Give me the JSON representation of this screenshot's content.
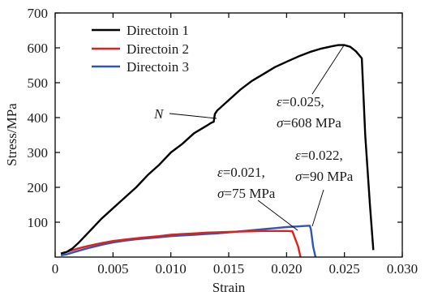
{
  "chart_data": {
    "type": "line",
    "xlabel": "Strain",
    "ylabel": "Stress/MPa",
    "xlim": [
      0,
      0.03
    ],
    "ylim": [
      0,
      700
    ],
    "xticks": [
      "0",
      "0.005",
      "0.010",
      "0.015",
      "0.020",
      "0.025",
      "0.030"
    ],
    "yticks": [
      "100",
      "200",
      "300",
      "400",
      "500",
      "600",
      "700"
    ],
    "xtick_values": [
      0,
      0.005,
      0.01,
      0.015,
      0.02,
      0.025,
      0.03
    ],
    "ytick_values": [
      100,
      200,
      300,
      400,
      500,
      600,
      700
    ],
    "grid": false,
    "legend_position": "top-left",
    "series": [
      {
        "name": "Directoin 1",
        "color": "#000000",
        "x": [
          0.0005,
          0.001,
          0.0015,
          0.002,
          0.003,
          0.004,
          0.005,
          0.006,
          0.007,
          0.008,
          0.009,
          0.01,
          0.011,
          0.012,
          0.013,
          0.0135,
          0.0137,
          0.0138,
          0.014,
          0.015,
          0.016,
          0.017,
          0.018,
          0.019,
          0.02,
          0.021,
          0.022,
          0.023,
          0.024,
          0.0245,
          0.025,
          0.0255,
          0.026,
          0.0265,
          0.0268,
          0.0272,
          0.0275
        ],
        "y": [
          10,
          15,
          25,
          40,
          75,
          110,
          140,
          170,
          200,
          235,
          265,
          300,
          325,
          355,
          375,
          385,
          388,
          410,
          420,
          450,
          480,
          505,
          525,
          545,
          560,
          575,
          588,
          598,
          605,
          608,
          608,
          603,
          590,
          570,
          350,
          150,
          20
        ]
      },
      {
        "name": "Directoin 2",
        "color": "#e0201b",
        "x": [
          0.0005,
          0.001,
          0.002,
          0.003,
          0.004,
          0.005,
          0.006,
          0.007,
          0.008,
          0.009,
          0.01,
          0.011,
          0.012,
          0.013,
          0.014,
          0.015,
          0.016,
          0.017,
          0.018,
          0.019,
          0.02,
          0.0205,
          0.021,
          0.0212
        ],
        "y": [
          10,
          15,
          25,
          33,
          40,
          46,
          50,
          54,
          57,
          60,
          64,
          66,
          68,
          70,
          71,
          72,
          73,
          74,
          75,
          75,
          75,
          74,
          30,
          0
        ]
      },
      {
        "name": "Directoin 3",
        "color": "#2f55b8",
        "x": [
          0.0005,
          0.001,
          0.002,
          0.003,
          0.004,
          0.005,
          0.006,
          0.007,
          0.008,
          0.009,
          0.01,
          0.011,
          0.012,
          0.013,
          0.014,
          0.015,
          0.016,
          0.017,
          0.018,
          0.019,
          0.02,
          0.021,
          0.0215,
          0.022,
          0.0221,
          0.0223,
          0.0225
        ],
        "y": [
          5,
          8,
          18,
          27,
          35,
          42,
          47,
          51,
          54,
          57,
          60,
          62,
          64,
          66,
          68,
          71,
          74,
          77,
          80,
          83,
          86,
          88,
          89,
          90,
          80,
          30,
          0
        ]
      }
    ],
    "annotations": [
      {
        "id": "n",
        "symbol": "N",
        "x": 0.0138,
        "y": 395
      },
      {
        "id": "d1",
        "eps": "ε",
        "eps_text": "=0.025,",
        "sig": "σ",
        "sig_text": "=608 MPa",
        "x": 0.025,
        "y": 608
      },
      {
        "id": "d2",
        "eps": "ε",
        "eps_text": "=0.021,",
        "sig": "σ",
        "sig_text": "=75 MPa",
        "x": 0.0205,
        "y": 75
      },
      {
        "id": "d3",
        "eps": "ε",
        "eps_text": "=0.022,",
        "sig": "σ",
        "sig_text": "=90 MPa",
        "x": 0.022,
        "y": 90
      }
    ]
  }
}
